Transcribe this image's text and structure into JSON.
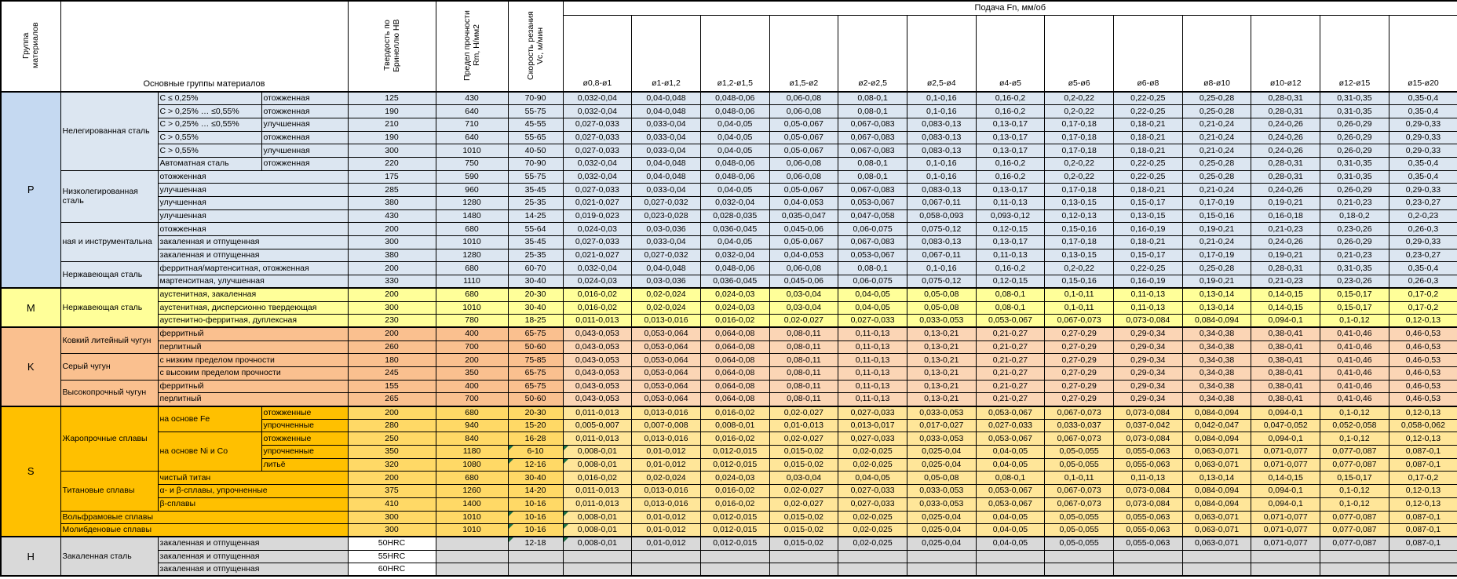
{
  "table": {
    "feed_header": "Подача Fn, мм/об",
    "col_headers": {
      "group": "Группа материалов",
      "materials": "Основные группы материалов",
      "hardness": "Твердость по Бринеллю HB",
      "strength": "Предел прочности Rm, Н/мм2",
      "speed": "Скорость резания Vc, м/мин"
    },
    "feed_cols": [
      "ø0,8-ø1",
      "ø1-ø1,2",
      "ø1,2-ø1,5",
      "ø1,5-ø2",
      "ø2-ø2,5",
      "ø2,5-ø4",
      "ø4-ø5",
      "ø5-ø6",
      "ø6-ø8",
      "ø8-ø10",
      "ø10-ø12",
      "ø12-ø15",
      "ø15-ø20"
    ],
    "feed_patterns": {
      "A": [
        "0,032-0,04",
        "0,04-0,048",
        "0,048-0,06",
        "0,06-0,08",
        "0,08-0,1",
        "0,1-0,16",
        "0,16-0,2",
        "0,2-0,22",
        "0,22-0,25",
        "0,25-0,28",
        "0,28-0,31",
        "0,31-0,35",
        "0,35-0,4"
      ],
      "B": [
        "0,027-0,033",
        "0,033-0,04",
        "0,04-0,05",
        "0,05-0,067",
        "0,067-0,083",
        "0,083-0,13",
        "0,13-0,17",
        "0,17-0,18",
        "0,18-0,21",
        "0,21-0,24",
        "0,24-0,26",
        "0,26-0,29",
        "0,29-0,33"
      ],
      "C": [
        "0,021-0,027",
        "0,027-0,032",
        "0,032-0,04",
        "0,04-0,053",
        "0,053-0,067",
        "0,067-0,11",
        "0,11-0,13",
        "0,13-0,15",
        "0,15-0,17",
        "0,17-0,19",
        "0,19-0,21",
        "0,21-0,23",
        "0,23-0,27"
      ],
      "D": [
        "0,019-0,023",
        "0,023-0,028",
        "0,028-0,035",
        "0,035-0,047",
        "0,047-0,058",
        "0,058-0,093",
        "0,093-0,12",
        "0,12-0,13",
        "0,13-0,15",
        "0,15-0,16",
        "0,16-0,18",
        "0,18-0,2",
        "0,2-0,23"
      ],
      "E": [
        "0,024-0,03",
        "0,03-0,036",
        "0,036-0,045",
        "0,045-0,06",
        "0,06-0,075",
        "0,075-0,12",
        "0,12-0,15",
        "0,15-0,16",
        "0,16-0,19",
        "0,19-0,21",
        "0,21-0,23",
        "0,23-0,26",
        "0,26-0,3"
      ],
      "F": [
        "0,016-0,02",
        "0,02-0,024",
        "0,024-0,03",
        "0,03-0,04",
        "0,04-0,05",
        "0,05-0,08",
        "0,08-0,1",
        "0,1-0,11",
        "0,11-0,13",
        "0,13-0,14",
        "0,14-0,15",
        "0,15-0,17",
        "0,17-0,2"
      ],
      "G": [
        "0,011-0,013",
        "0,013-0,016",
        "0,016-0,02",
        "0,02-0,027",
        "0,027-0,033",
        "0,033-0,053",
        "0,053-0,067",
        "0,067-0,073",
        "0,073-0,084",
        "0,084-0,094",
        "0,094-0,1",
        "0,1-0,12",
        "0,12-0,13"
      ],
      "K": [
        "0,043-0,053",
        "0,053-0,064",
        "0,064-0,08",
        "0,08-0,11",
        "0,11-0,13",
        "0,13-0,21",
        "0,21-0,27",
        "0,27-0,29",
        "0,29-0,34",
        "0,34-0,38",
        "0,38-0,41",
        "0,41-0,46",
        "0,46-0,53"
      ],
      "I": [
        "0,005-0,007",
        "0,007-0,008",
        "0,008-0,01",
        "0,01-0,013",
        "0,013-0,017",
        "0,017-0,027",
        "0,027-0,033",
        "0,033-0,037",
        "0,037-0,042",
        "0,042-0,047",
        "0,047-0,052",
        "0,052-0,058",
        "0,058-0,062"
      ],
      "J": [
        "0,008-0,01",
        "0,01-0,012",
        "0,012-0,015",
        "0,015-0,02",
        "0,02-0,025",
        "0,025-0,04",
        "0,04-0,05",
        "0,05-0,055",
        "0,055-0,063",
        "0,063-0,071",
        "0,071-0,077",
        "0,077-0,087",
        "0,087-0,1"
      ]
    },
    "groups": [
      {
        "key": "p",
        "letter": "P",
        "rows": [
          {
            "mats": [
              {
                "t": "Нелегированная сталь",
                "rs": 6
              },
              {
                "t": "C ≤ 0,25%"
              },
              {
                "t": "отожженная"
              }
            ],
            "hb": "125",
            "rm": "430",
            "vc": "70-90",
            "feed": "A"
          },
          {
            "mats": [
              {
                "t": "C > 0,25% … ≤0,55%"
              },
              {
                "t": "отожженная"
              }
            ],
            "hb": "190",
            "rm": "640",
            "vc": "55-75",
            "feed": "A"
          },
          {
            "mats": [
              {
                "t": "C > 0,25% … ≤0,55%"
              },
              {
                "t": "улучшенная"
              }
            ],
            "hb": "210",
            "rm": "710",
            "vc": "45-55",
            "feed": "B"
          },
          {
            "mats": [
              {
                "t": "C > 0,55%"
              },
              {
                "t": "отожженная"
              }
            ],
            "hb": "190",
            "rm": "640",
            "vc": "55-65",
            "feed": "B"
          },
          {
            "mats": [
              {
                "t": "C > 0,55%"
              },
              {
                "t": "улучшенная"
              }
            ],
            "hb": "300",
            "rm": "1010",
            "vc": "40-50",
            "feed": "B"
          },
          {
            "mats": [
              {
                "t": "Автоматная сталь"
              },
              {
                "t": "отожженная"
              }
            ],
            "hb": "220",
            "rm": "750",
            "vc": "70-90",
            "feed": "A"
          },
          {
            "mats": [
              {
                "t": "Низколегированная сталь",
                "rs": 4
              },
              {
                "t": "отожженная",
                "cs": 2
              }
            ],
            "hb": "175",
            "rm": "590",
            "vc": "55-75",
            "feed": "A"
          },
          {
            "mats": [
              {
                "t": "улучшенная",
                "cs": 2
              }
            ],
            "hb": "285",
            "rm": "960",
            "vc": "35-45",
            "feed": "B"
          },
          {
            "mats": [
              {
                "t": "улучшенная",
                "cs": 2
              }
            ],
            "hb": "380",
            "rm": "1280",
            "vc": "25-35",
            "feed": "C"
          },
          {
            "mats": [
              {
                "t": "улучшенная",
                "cs": 2
              }
            ],
            "hb": "430",
            "rm": "1480",
            "vc": "14-25",
            "feed": "D"
          },
          {
            "mats": [
              {
                "t": "ная и инструментальна",
                "rs": 3
              },
              {
                "t": "отожженная",
                "cs": 2
              }
            ],
            "hb": "200",
            "rm": "680",
            "vc": "55-64",
            "feed": "E"
          },
          {
            "mats": [
              {
                "t": "закаленная и отпущенная",
                "cs": 2
              }
            ],
            "hb": "300",
            "rm": "1010",
            "vc": "35-45",
            "feed": "B"
          },
          {
            "mats": [
              {
                "t": "закаленная и отпущенная",
                "cs": 2
              }
            ],
            "hb": "380",
            "rm": "1280",
            "vc": "25-35",
            "feed": "C"
          },
          {
            "mats": [
              {
                "t": "Нержавеющая сталь",
                "rs": 2
              },
              {
                "t": "ферритная/мартенситная, отожженная",
                "cs": 2
              }
            ],
            "hb": "200",
            "rm": "680",
            "vc": "60-70",
            "feed": "A"
          },
          {
            "mats": [
              {
                "t": "мартенситная, улучшенная",
                "cs": 2
              }
            ],
            "hb": "330",
            "rm": "1110",
            "vc": "30-40",
            "feed": "E"
          }
        ]
      },
      {
        "key": "m",
        "letter": "M",
        "rows": [
          {
            "mats": [
              {
                "t": "Нержавеющая сталь",
                "rs": 3
              },
              {
                "t": "аустенитная, закаленная",
                "cs": 2
              }
            ],
            "hb": "200",
            "rm": "680",
            "vc": "20-30",
            "feed": "F"
          },
          {
            "mats": [
              {
                "t": "аустенитная, дисперсионно твердеющая",
                "cs": 2
              }
            ],
            "hb": "300",
            "rm": "1010",
            "vc": "30-40",
            "feed": "F"
          },
          {
            "mats": [
              {
                "t": "аустенитно-ферритная, дуплексная",
                "cs": 2
              }
            ],
            "hb": "230",
            "rm": "780",
            "vc": "18-25",
            "feed": "G"
          }
        ]
      },
      {
        "key": "k",
        "letter": "K",
        "rows": [
          {
            "mats": [
              {
                "t": "Ковкий литейный чугун",
                "rs": 2
              },
              {
                "t": "ферритный",
                "cs": 2
              }
            ],
            "hb": "200",
            "rm": "400",
            "vc": "65-75",
            "feed": "K"
          },
          {
            "mats": [
              {
                "t": "перлитный",
                "cs": 2
              }
            ],
            "hb": "260",
            "rm": "700",
            "vc": "50-60",
            "feed": "K"
          },
          {
            "mats": [
              {
                "t": "Серый чугун",
                "rs": 2
              },
              {
                "t": "с низким пределом прочности",
                "cs": 2
              }
            ],
            "hb": "180",
            "rm": "200",
            "vc": "75-85",
            "feed": "K"
          },
          {
            "mats": [
              {
                "t": "с высоким пределом прочности",
                "cs": 2
              }
            ],
            "hb": "245",
            "rm": "350",
            "vc": "65-75",
            "feed": "K"
          },
          {
            "mats": [
              {
                "t": "Высокопрочный чугун",
                "rs": 2
              },
              {
                "t": "ферритный",
                "cs": 2
              }
            ],
            "hb": "155",
            "rm": "400",
            "vc": "65-75",
            "feed": "K"
          },
          {
            "mats": [
              {
                "t": "перлитный",
                "cs": 2
              }
            ],
            "hb": "265",
            "rm": "700",
            "vc": "50-60",
            "feed": "K"
          }
        ]
      },
      {
        "key": "s",
        "letter": "S",
        "rows": [
          {
            "mats": [
              {
                "t": "Жаропрочные сплавы",
                "rs": 5
              },
              {
                "t": "на основе Fe",
                "rs": 2
              },
              {
                "t": "отожженные"
              }
            ],
            "hb": "200",
            "rm": "680",
            "vc": "20-30",
            "feed": "G"
          },
          {
            "mats": [
              {
                "t": "упрочненные"
              }
            ],
            "hb": "280",
            "rm": "940",
            "vc": "15-20",
            "feed": "I"
          },
          {
            "mats": [
              {
                "t": "на основе Ni и Co",
                "rs": 3
              },
              {
                "t": "отожженные"
              }
            ],
            "hb": "250",
            "rm": "840",
            "vc": "16-28",
            "feed": "G"
          },
          {
            "mats": [
              {
                "t": "упрочненные"
              }
            ],
            "hb": "350",
            "rm": "1180",
            "vc": "6-10",
            "feed": "J",
            "vcflag": true,
            "fflags": [
              0
            ]
          },
          {
            "mats": [
              {
                "t": "литьё"
              }
            ],
            "hb": "320",
            "rm": "1080",
            "vc": "12-16",
            "feed": "J",
            "vcflag": true,
            "fflags": [
              0
            ]
          },
          {
            "mats": [
              {
                "t": "Титановые сплавы",
                "rs": 3
              },
              {
                "t": "чистый титан",
                "cs": 2
              }
            ],
            "hb": "200",
            "rm": "680",
            "vc": "30-40",
            "feed": "F"
          },
          {
            "mats": [
              {
                "t": "α- и β-сплавы, упрочненные",
                "cs": 2
              }
            ],
            "hb": "375",
            "rm": "1260",
            "vc": "14-20",
            "feed": "G"
          },
          {
            "mats": [
              {
                "t": "β-сплавы",
                "cs": 2
              }
            ],
            "hb": "410",
            "rm": "1400",
            "vc": "10-16",
            "feed": "G"
          },
          {
            "mats": [
              {
                "t": "Вольфрамовые сплавы",
                "cs": 3
              }
            ],
            "hb": "300",
            "rm": "1010",
            "vc": "10-16",
            "feed": "J",
            "vcflag": true,
            "fflags": [
              0
            ]
          },
          {
            "mats": [
              {
                "t": "Молибденовые сплавы",
                "cs": 3
              }
            ],
            "hb": "300",
            "rm": "1010",
            "vc": "10-16",
            "feed": "J",
            "vcflag": true,
            "fflags": [
              0
            ]
          }
        ]
      },
      {
        "key": "h",
        "letter": "H",
        "rows": [
          {
            "mats": [
              {
                "t": "Закаленная сталь",
                "rs": 3
              },
              {
                "t": "закаленная и отпущенная",
                "cs": 2
              }
            ],
            "hb": "50HRC",
            "rm": "",
            "vc": "12-18",
            "feed": "J",
            "vcflag": true,
            "fflags": [
              0
            ]
          },
          {
            "mats": [
              {
                "t": "закаленная и отпущенная",
                "cs": 2
              }
            ],
            "hb": "55HRC",
            "rm": "",
            "vc": "",
            "feed": ""
          },
          {
            "mats": [
              {
                "t": "закаленная и отпущенная",
                "cs": 2
              }
            ],
            "hb": "60HRC",
            "rm": "",
            "vc": "",
            "feed": ""
          }
        ]
      }
    ]
  }
}
